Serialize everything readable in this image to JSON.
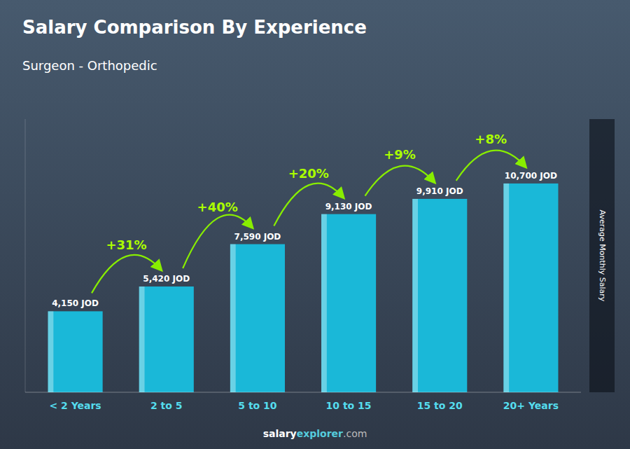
{
  "chart_data": {
    "type": "bar",
    "title": "Salary Comparison By Experience",
    "subtitle": "Surgeon - Orthopedic",
    "ylabel": "Average Monthly Salary",
    "categories": [
      "< 2 Years",
      "2 to 5",
      "5 to 10",
      "10 to 15",
      "15 to 20",
      "20+ Years"
    ],
    "values": [
      4150,
      5420,
      7590,
      9130,
      9910,
      10700
    ],
    "value_labels": [
      "4,150 JOD",
      "5,420 JOD",
      "7,590 JOD",
      "9,130 JOD",
      "9,910 JOD",
      "10,700 JOD"
    ],
    "data_labels": true,
    "annotations": [
      "+31%",
      "+40%",
      "+20%",
      "+9%",
      "+8%"
    ],
    "footer": [
      "salary",
      "explorer",
      ".com"
    ],
    "color": "#1AB8D8",
    "ylim": [
      0,
      14000
    ],
    "tick_labels": "x",
    "grid": false
  }
}
